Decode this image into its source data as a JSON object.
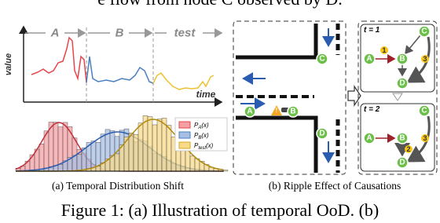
{
  "header_fragment": "e flow from node C observed by D.",
  "panel_a": {
    "y_label": "value",
    "x_label": "time",
    "segments": [
      "A",
      "B",
      "test"
    ],
    "legend": [
      {
        "base": "P",
        "sub": "A",
        "tail": "(x)"
      },
      {
        "base": "P",
        "sub": "B",
        "tail": "(x)"
      },
      {
        "base": "P",
        "sub": "test",
        "tail": "(x)"
      }
    ],
    "caption": "(a) Temporal Distribution Shift"
  },
  "nodes": [
    "A",
    "B",
    "C",
    "D"
  ],
  "panel_b": {
    "graphs": [
      {
        "label": "t = 1",
        "edge_labels": [
          "1",
          "3"
        ]
      },
      {
        "label": "t = 2",
        "edge_labels": [
          "2",
          "3"
        ]
      }
    ],
    "caption": "(b) Ripple Effect of Causations"
  },
  "footer_fragment": "Figure 1: (a) Illustration of temporal OoD. (b)"
}
